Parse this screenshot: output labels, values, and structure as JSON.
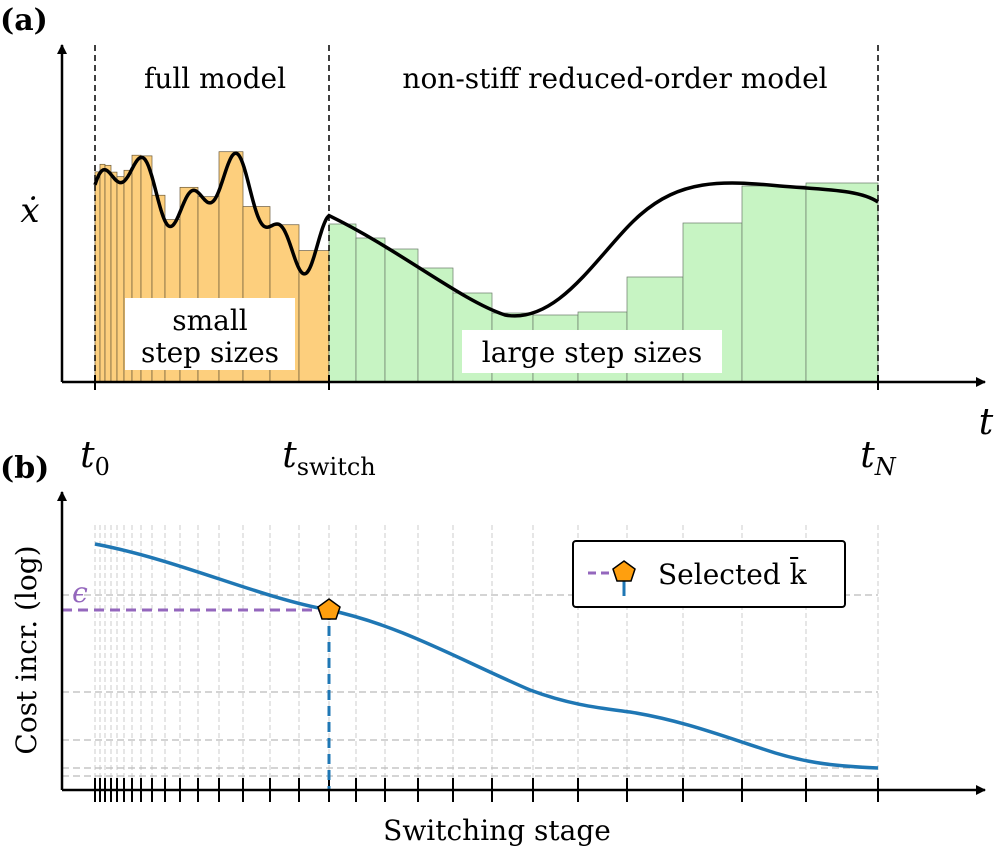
{
  "panel_a": {
    "label": "(a)",
    "regions": [
      "full model",
      "non-stiff reduced-order model"
    ],
    "y_label": "ẋ",
    "annotations": [
      "small",
      "step sizes",
      "large step sizes"
    ],
    "x_ticks": [
      {
        "symbol": "t",
        "subscript": "0"
      },
      {
        "symbol": "t",
        "subscript": "switch"
      },
      {
        "symbol": "t",
        "subscript": "N"
      }
    ],
    "x_label": "t"
  },
  "panel_b": {
    "label": "(b)",
    "y_label": "Cost incr. (log)",
    "threshold_label": "ϵ",
    "legend": "Selected k̄",
    "x_label": "Switching stage"
  }
}
